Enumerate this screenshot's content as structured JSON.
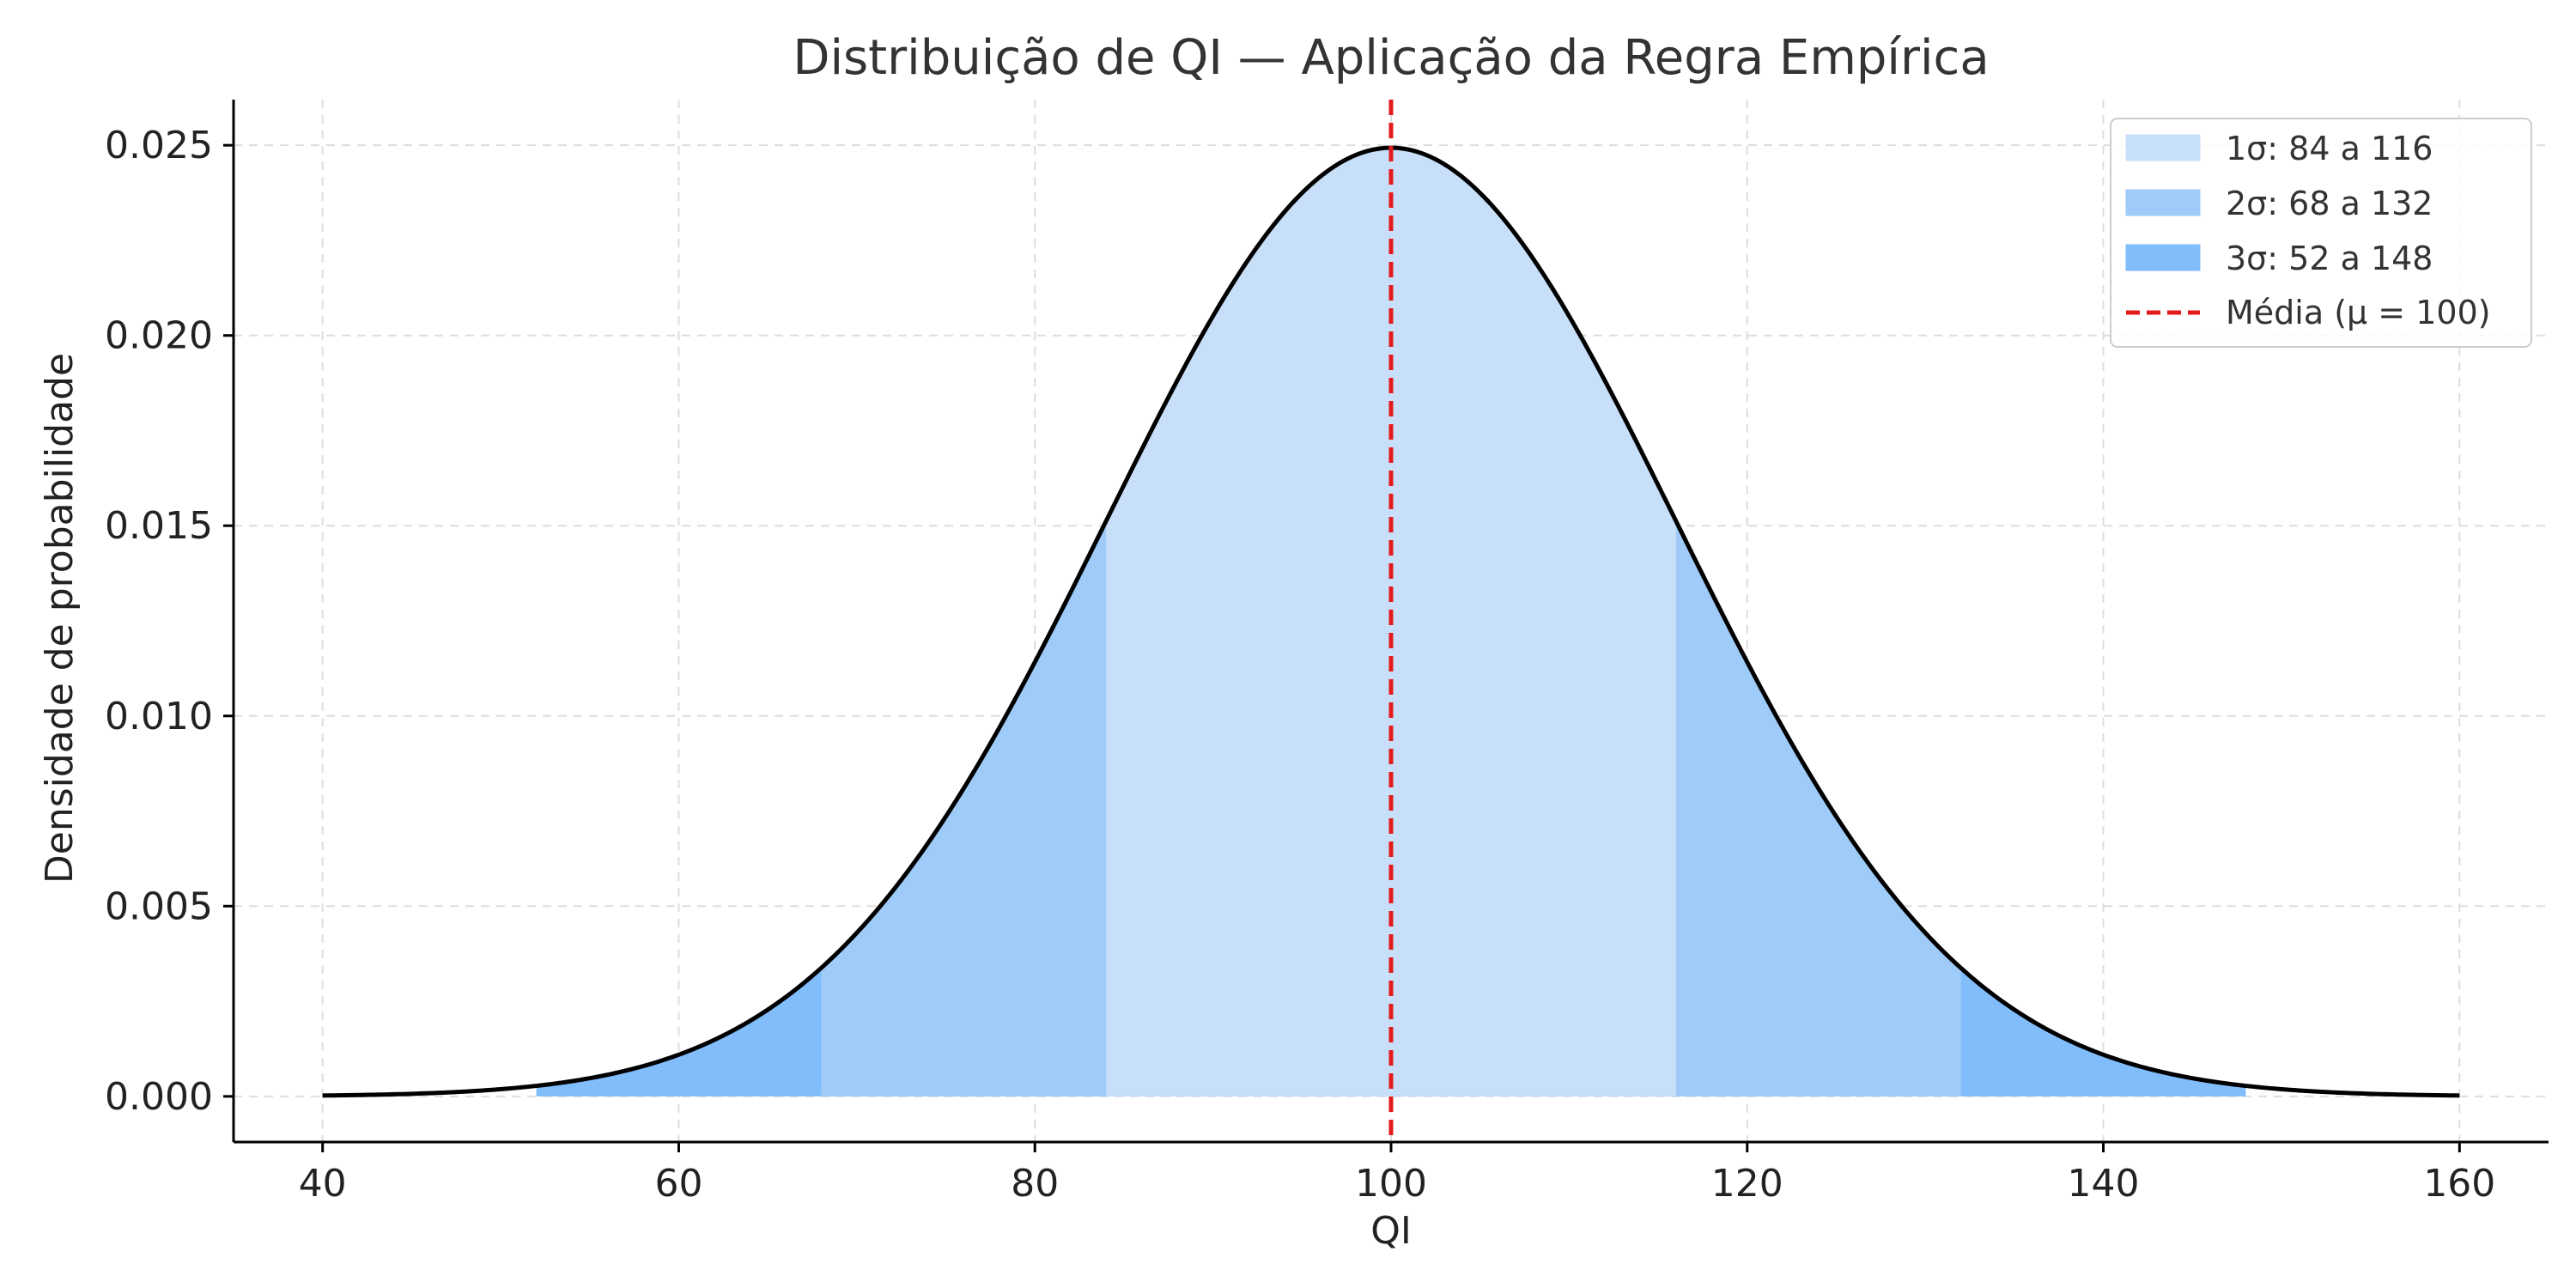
{
  "chart_data": {
    "type": "area",
    "title": "Distribuição de QI — Aplicação da Regra Empírica",
    "xlabel": "QI",
    "ylabel": "Densidade de probabilidade",
    "xlim": [
      35,
      165
    ],
    "ylim": [
      -0.0012,
      0.0262
    ],
    "x_ticks": [
      40,
      60,
      80,
      100,
      120,
      140,
      160
    ],
    "x_tick_labels": [
      "40",
      "60",
      "80",
      "100",
      "120",
      "140",
      "160"
    ],
    "y_ticks": [
      0.0,
      0.005,
      0.01,
      0.015,
      0.02,
      0.025
    ],
    "y_tick_labels": [
      "0.000",
      "0.005",
      "0.010",
      "0.015",
      "0.020",
      "0.025"
    ],
    "grid": true,
    "legend_position": "top-right",
    "distribution": {
      "mean": 100,
      "sd": 16,
      "x_range": [
        40,
        160
      ]
    },
    "curve_color": "#000000",
    "series": [
      {
        "name": "1σ: 84 a 116",
        "range": [
          84,
          116
        ],
        "color": "#c8dff9"
      },
      {
        "name": "2σ: 68 a 132",
        "range": [
          68,
          132
        ],
        "color": "#9ecbf7"
      },
      {
        "name": "3σ: 52 a 148",
        "range": [
          52,
          148
        ],
        "color": "#81bdfb"
      },
      {
        "name": "Média (μ = 100)",
        "x": 100,
        "color": "#e31a1c",
        "style": "dashed"
      }
    ]
  }
}
